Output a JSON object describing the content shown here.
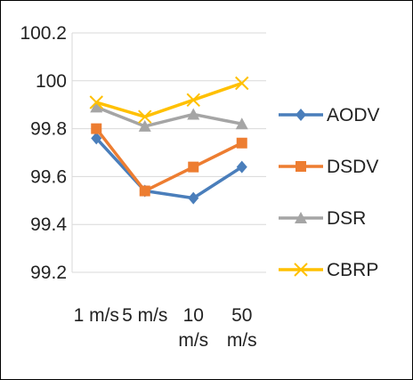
{
  "chart_data": {
    "type": "line",
    "title": "",
    "xlabel": "",
    "ylabel": "",
    "categories": [
      [
        "1 m/s"
      ],
      [
        "5 m/s"
      ],
      [
        "10",
        "m/s"
      ],
      [
        "50",
        "m/s"
      ]
    ],
    "ylim": [
      99.2,
      100.2
    ],
    "yticks": [
      "99.2",
      "99.4",
      "99.6",
      "99.8",
      "100",
      "100.2"
    ],
    "grid": true,
    "legend": "right",
    "series": [
      {
        "name": "AODV",
        "values": [
          99.76,
          99.54,
          99.51,
          99.64
        ],
        "color": "#4a7ebb",
        "marker": "diamond"
      },
      {
        "name": "DSDV",
        "values": [
          99.8,
          99.54,
          99.64,
          99.74
        ],
        "color": "#ed7d31",
        "marker": "square"
      },
      {
        "name": "DSR",
        "values": [
          99.89,
          99.81,
          99.86,
          99.82
        ],
        "color": "#a5a5a5",
        "marker": "triangle"
      },
      {
        "name": "CBRP",
        "values": [
          99.91,
          99.85,
          99.92,
          99.99
        ],
        "color": "#ffc000",
        "marker": "x"
      }
    ]
  }
}
